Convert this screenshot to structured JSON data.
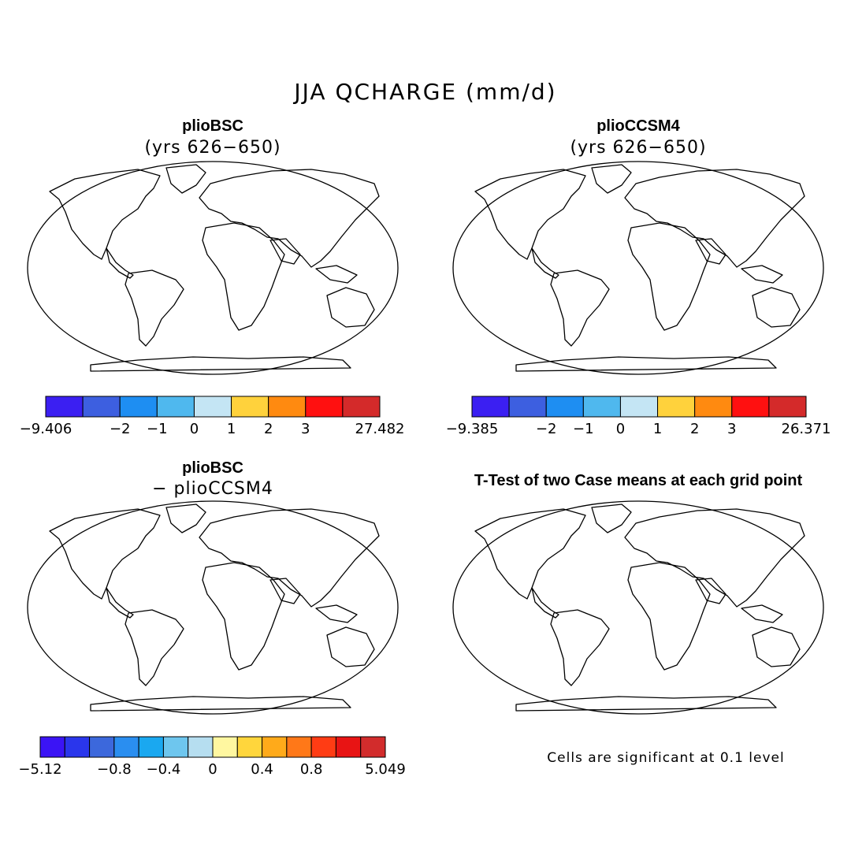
{
  "figure": {
    "title": "JJA QCHARGE (mm/d)"
  },
  "panels": [
    {
      "id": "bsc",
      "title": "plioBSC",
      "subtitle": "(yrs 626−650)",
      "colorbar": {
        "colors": [
          "#3b1ff2",
          "#3d5fe0",
          "#1e8ef2",
          "#4fb8ee",
          "#c4e5f4",
          "#ffd23c",
          "#ff8a10",
          "#ff1010",
          "#d42a2a"
        ],
        "ticks": [
          {
            "boundary": 0,
            "label": "−9.406"
          },
          {
            "boundary": 2,
            "label": "−2"
          },
          {
            "boundary": 3,
            "label": "−1"
          },
          {
            "boundary": 4,
            "label": "0"
          },
          {
            "boundary": 5,
            "label": "1"
          },
          {
            "boundary": 6,
            "label": "2"
          },
          {
            "boundary": 7,
            "label": "3"
          },
          {
            "boundary": 9,
            "label": "27.482"
          }
        ]
      }
    },
    {
      "id": "ccsm4",
      "title": "plioCCSM4",
      "subtitle": "(yrs 626−650)",
      "colorbar": {
        "colors": [
          "#3b1ff2",
          "#3d5fe0",
          "#1e8ef2",
          "#4fb8ee",
          "#c4e5f4",
          "#ffd23c",
          "#ff8a10",
          "#ff1010",
          "#d42a2a"
        ],
        "ticks": [
          {
            "boundary": 0,
            "label": "−9.385"
          },
          {
            "boundary": 2,
            "label": "−2"
          },
          {
            "boundary": 3,
            "label": "−1"
          },
          {
            "boundary": 4,
            "label": "0"
          },
          {
            "boundary": 5,
            "label": "1"
          },
          {
            "boundary": 6,
            "label": "2"
          },
          {
            "boundary": 7,
            "label": "3"
          },
          {
            "boundary": 9,
            "label": "26.371"
          }
        ]
      }
    },
    {
      "id": "diff",
      "title": "plioBSC",
      "subtitle": "− plioCCSM4",
      "colorbar": {
        "colors": [
          "#3b14f5",
          "#2a36ec",
          "#3c68dc",
          "#2a8ef0",
          "#1aa8f0",
          "#6ec6ee",
          "#b6def0",
          "#fff7a0",
          "#ffd63c",
          "#ffaa1a",
          "#ff7818",
          "#ff3c14",
          "#e81414",
          "#d22c2c"
        ],
        "ticks": [
          {
            "boundary": 0,
            "label": "−5.12"
          },
          {
            "boundary": 3,
            "label": "−0.8"
          },
          {
            "boundary": 5,
            "label": "−0.4"
          },
          {
            "boundary": 7,
            "label": "0"
          },
          {
            "boundary": 9,
            "label": "0.4"
          },
          {
            "boundary": 11,
            "label": "0.8"
          },
          {
            "boundary": 14,
            "label": "5.049"
          }
        ]
      }
    },
    {
      "id": "ttest",
      "title": "T-Test of two Case means at each grid point",
      "note": "Cells are significant at 0.1 level",
      "significant_color": "#ff0000"
    }
  ]
}
